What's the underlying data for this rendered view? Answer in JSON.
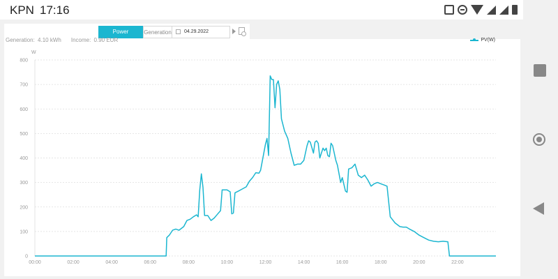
{
  "status_bar": {
    "carrier": "KPN",
    "clock": "17:16",
    "icons": [
      "vibrate-icon",
      "do-not-disturb-icon",
      "wifi-icon",
      "signal-icon",
      "signal-icon",
      "battery-icon"
    ]
  },
  "toolbar": {
    "tab_power": "Power",
    "tab_generation": "Generation",
    "date": "04.29.2022",
    "next_icon": "chevron-right-icon",
    "export_icon": "export-file-icon"
  },
  "summary": {
    "generation_label": "Generation:",
    "generation_value": "4.10 kWh",
    "income_label": "Income:",
    "income_value": "0.90 EUR"
  },
  "colors": {
    "accent": "#1bb6d0",
    "grid": "#dddddd"
  },
  "chart_data": {
    "type": "line",
    "title": "",
    "xlabel": "",
    "ylabel": "W",
    "xlim": [
      "00:00",
      "24:00"
    ],
    "ylim": [
      0,
      800
    ],
    "grid": true,
    "legend_position": "top-right",
    "x_ticks": [
      "00:00",
      "02:00",
      "04:00",
      "06:00",
      "08:00",
      "10:00",
      "12:00",
      "14:00",
      "16:00",
      "18:00",
      "20:00",
      "22:00"
    ],
    "y_ticks": [
      "0",
      "100",
      "200",
      "300",
      "400",
      "500",
      "600",
      "700",
      "800"
    ],
    "series": [
      {
        "name": "PV(W)",
        "color": "#1bb6d0",
        "points": [
          [
            "00:00",
            0
          ],
          [
            "06:50",
            0
          ],
          [
            "06:52",
            75
          ],
          [
            "07:00",
            85
          ],
          [
            "07:10",
            105
          ],
          [
            "07:20",
            110
          ],
          [
            "07:30",
            105
          ],
          [
            "07:45",
            120
          ],
          [
            "07:55",
            145
          ],
          [
            "08:05",
            150
          ],
          [
            "08:15",
            160
          ],
          [
            "08:25",
            168
          ],
          [
            "08:30",
            160
          ],
          [
            "08:35",
            270
          ],
          [
            "08:40",
            335
          ],
          [
            "08:45",
            280
          ],
          [
            "08:50",
            165
          ],
          [
            "09:00",
            165
          ],
          [
            "09:10",
            145
          ],
          [
            "09:20",
            155
          ],
          [
            "09:30",
            170
          ],
          [
            "09:40",
            185
          ],
          [
            "09:45",
            270
          ],
          [
            "10:00",
            270
          ],
          [
            "10:10",
            262
          ],
          [
            "10:15",
            172
          ],
          [
            "10:20",
            175
          ],
          [
            "10:25",
            258
          ],
          [
            "10:40",
            268
          ],
          [
            "11:00",
            282
          ],
          [
            "11:10",
            305
          ],
          [
            "11:20",
            320
          ],
          [
            "11:30",
            340
          ],
          [
            "11:40",
            338
          ],
          [
            "11:45",
            350
          ],
          [
            "11:50",
            385
          ],
          [
            "12:00",
            455
          ],
          [
            "12:05",
            480
          ],
          [
            "12:10",
            410
          ],
          [
            "12:15",
            735
          ],
          [
            "12:20",
            720
          ],
          [
            "12:25",
            720
          ],
          [
            "12:30",
            605
          ],
          [
            "12:35",
            700
          ],
          [
            "12:40",
            715
          ],
          [
            "12:45",
            680
          ],
          [
            "12:50",
            560
          ],
          [
            "13:00",
            510
          ],
          [
            "13:10",
            480
          ],
          [
            "13:20",
            420
          ],
          [
            "13:30",
            370
          ],
          [
            "13:40",
            375
          ],
          [
            "13:50",
            375
          ],
          [
            "14:00",
            390
          ],
          [
            "14:10",
            450
          ],
          [
            "14:15",
            470
          ],
          [
            "14:20",
            465
          ],
          [
            "14:30",
            420
          ],
          [
            "14:35",
            465
          ],
          [
            "14:40",
            470
          ],
          [
            "14:45",
            460
          ],
          [
            "14:50",
            400
          ],
          [
            "15:00",
            440
          ],
          [
            "15:05",
            430
          ],
          [
            "15:10",
            440
          ],
          [
            "15:15",
            410
          ],
          [
            "15:20",
            405
          ],
          [
            "15:25",
            460
          ],
          [
            "15:30",
            450
          ],
          [
            "15:40",
            390
          ],
          [
            "15:45",
            370
          ],
          [
            "15:55",
            300
          ],
          [
            "16:00",
            320
          ],
          [
            "16:10",
            265
          ],
          [
            "16:15",
            260
          ],
          [
            "16:20",
            355
          ],
          [
            "16:30",
            360
          ],
          [
            "16:40",
            375
          ],
          [
            "16:50",
            330
          ],
          [
            "17:00",
            320
          ],
          [
            "17:10",
            330
          ],
          [
            "17:20",
            310
          ],
          [
            "17:30",
            285
          ],
          [
            "17:40",
            295
          ],
          [
            "17:50",
            300
          ],
          [
            "18:00",
            295
          ],
          [
            "18:10",
            290
          ],
          [
            "18:20",
            285
          ],
          [
            "18:30",
            160
          ],
          [
            "18:45",
            135
          ],
          [
            "19:00",
            120
          ],
          [
            "19:10",
            118
          ],
          [
            "19:20",
            118
          ],
          [
            "19:30",
            110
          ],
          [
            "19:45",
            100
          ],
          [
            "20:00",
            85
          ],
          [
            "20:15",
            75
          ],
          [
            "20:30",
            65
          ],
          [
            "20:45",
            60
          ],
          [
            "21:00",
            58
          ],
          [
            "21:15",
            60
          ],
          [
            "21:30",
            58
          ],
          [
            "21:35",
            0
          ],
          [
            "24:00",
            0
          ]
        ]
      }
    ]
  },
  "nav_bar": {
    "recents_icon": "recents-square-icon",
    "home_icon": "home-circle-icon",
    "back_icon": "back-triangle-icon"
  }
}
